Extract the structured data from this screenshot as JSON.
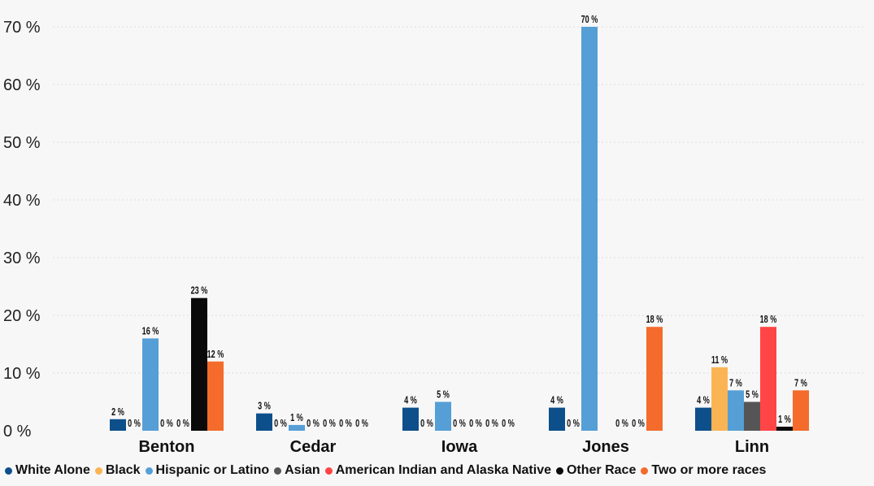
{
  "chart_data": {
    "type": "bar",
    "categories": [
      "Benton",
      "Cedar",
      "Iowa",
      "Jones",
      "Linn"
    ],
    "series": [
      {
        "name": "White Alone",
        "color": "#0d4f8b",
        "values": [
          2,
          3,
          4,
          4,
          4
        ],
        "labels": [
          "2 %",
          "3 %",
          "4 %",
          "4 %",
          "4 %"
        ]
      },
      {
        "name": "Black",
        "color": "#fbb454",
        "values": [
          0,
          0,
          0,
          0,
          11
        ],
        "labels": [
          "0 %",
          "0 %",
          "0 %",
          "0 %",
          "11 %"
        ]
      },
      {
        "name": "Hispanic or Latino",
        "color": "#559fd6",
        "values": [
          16,
          1,
          5,
          70,
          7
        ],
        "labels": [
          "16 %",
          "1 %",
          "5 %",
          "70 %",
          "7 %"
        ]
      },
      {
        "name": "Asian",
        "color": "#555555",
        "values": [
          0,
          0,
          0,
          null,
          5
        ],
        "labels": [
          "0 %",
          "0 %",
          "0 %",
          "",
          "5 %"
        ]
      },
      {
        "name": "American Indian and Alaska Native",
        "color": "#ff4545",
        "values": [
          0,
          0,
          0,
          0,
          18
        ],
        "labels": [
          "0 %",
          "0 %",
          "0 %",
          "0 %",
          "18 %"
        ]
      },
      {
        "name": "Other Race",
        "color": "#0a0a0a",
        "values": [
          23,
          0,
          0,
          0,
          0.7
        ],
        "labels": [
          "23 %",
          "0 %",
          "0 %",
          "0 %",
          "1 %"
        ]
      },
      {
        "name": "Two or more races",
        "color": "#f46b2c",
        "values": [
          12,
          0,
          0,
          18,
          7
        ],
        "labels": [
          "12 %",
          "0 %",
          "0 %",
          "18 %",
          "7 %"
        ]
      }
    ],
    "ylim": [
      0,
      70
    ],
    "yticks": [
      0,
      10,
      20,
      30,
      40,
      50,
      60,
      70
    ],
    "ytick_labels": [
      "0 %",
      "10 %",
      "20 %",
      "30 %",
      "40 %",
      "50 %",
      "60 %",
      "70 %"
    ],
    "grid": true,
    "legend_position": "bottom-left",
    "title": "",
    "xlabel": "",
    "ylabel": ""
  }
}
